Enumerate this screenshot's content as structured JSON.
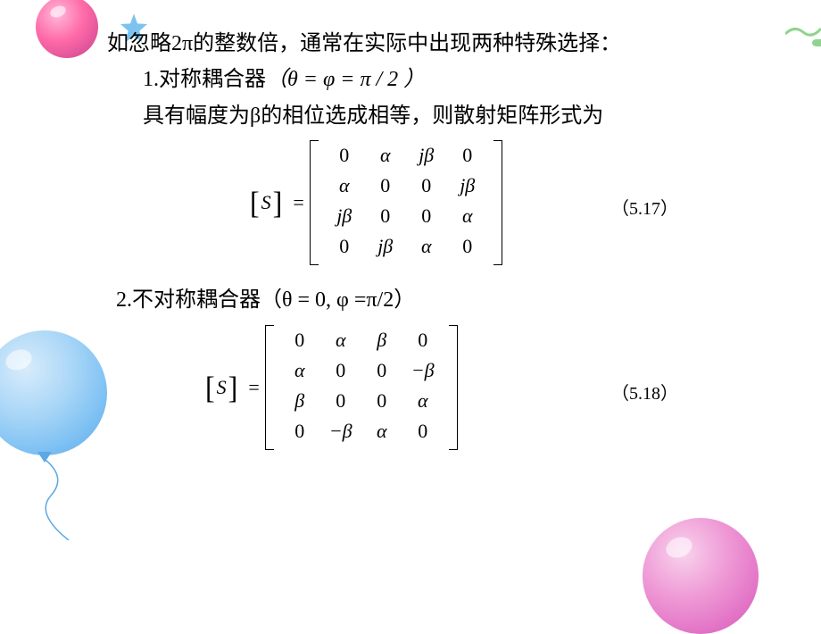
{
  "decor": {
    "balloon_top_color": "#e0549a",
    "balloon_left_color": "#7ec1f3",
    "balloon_bot_color": "#e477c8",
    "star_color": "#3fa2e8",
    "green": "#8fd48e"
  },
  "text": {
    "intro": "如忽略2π的整数倍，通常在实际中出现两种特殊选择：",
    "item1_prefix": "1.对",
    "item1_bold": "称耦合器",
    "item1_cond": "（θ = φ = π / 2 ）",
    "item1_desc": "具有幅度为β的相位选成相等，则散射矩阵形式为",
    "item2": "2.不对称耦合器（θ = 0, φ =π/2）",
    "eq1_num": "（5.17）",
    "eq2_num": "（5.18）"
  },
  "eq": {
    "lhs_l": "[",
    "lhs_s": "S",
    "lhs_r": "]",
    "equals": "="
  },
  "matrix1": {
    "type": "matrix",
    "rows": 4,
    "cols": 4,
    "font_size": 22,
    "cells": [
      [
        "0",
        "α",
        "jβ",
        "0"
      ],
      [
        "α",
        "0",
        "0",
        "jβ"
      ],
      [
        "jβ",
        "0",
        "0",
        "α"
      ],
      [
        "0",
        "jβ",
        "α",
        "0"
      ]
    ]
  },
  "matrix2": {
    "type": "matrix",
    "rows": 4,
    "cols": 4,
    "font_size": 22,
    "cells": [
      [
        "0",
        "α",
        "β",
        "0"
      ],
      [
        "α",
        "0",
        "0",
        "−β"
      ],
      [
        "β",
        "0",
        "0",
        "α"
      ],
      [
        "0",
        "−β",
        "α",
        "0"
      ]
    ]
  },
  "style": {
    "text_color": "#000000",
    "background_color": "#ffffff",
    "body_fontsize": 24,
    "eq_fontsize": 22,
    "label_fontsize": 20
  }
}
